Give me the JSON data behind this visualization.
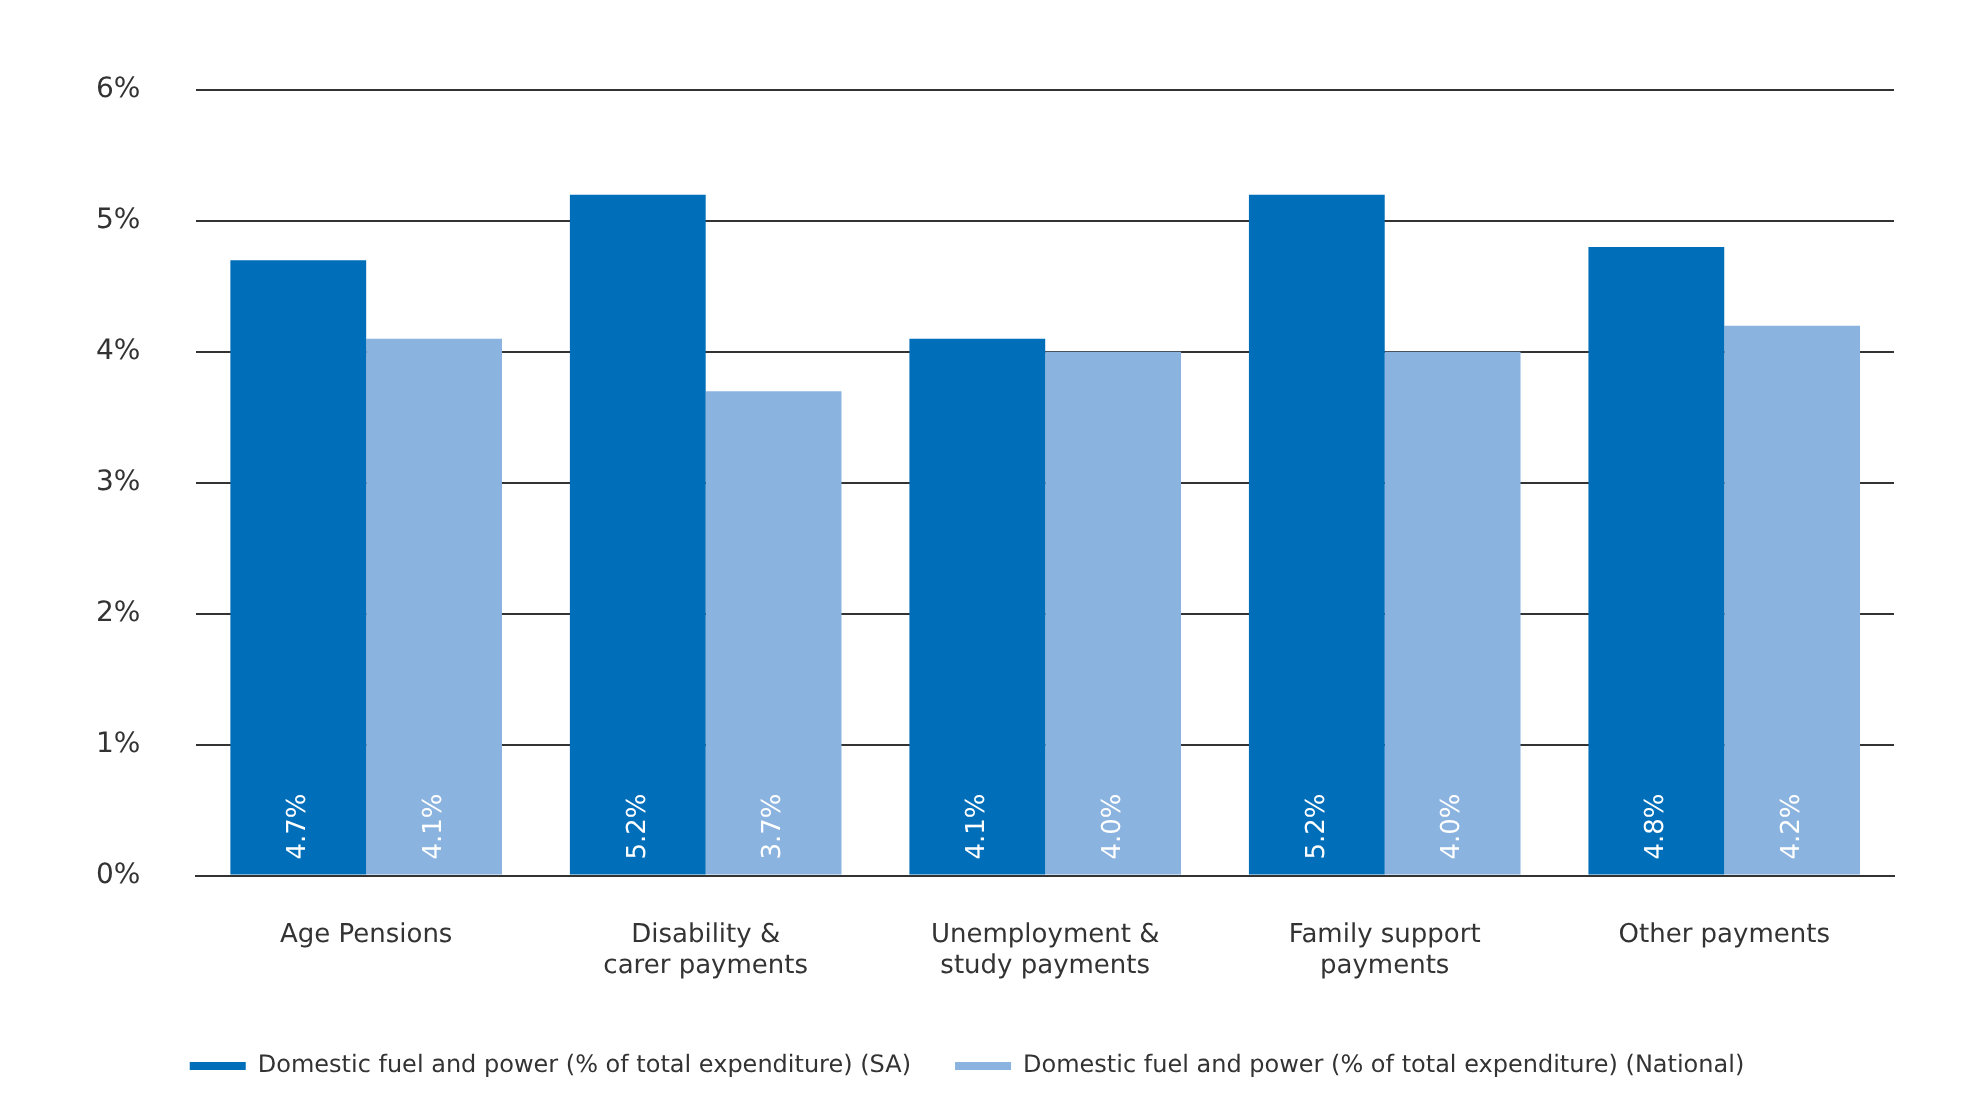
{
  "chart_data": {
    "type": "bar",
    "categories": [
      "Age Pensions",
      "Disability &\ncarer payments",
      "Unemployment &\nstudy payments",
      "Family support\npayments",
      "Other payments"
    ],
    "series": [
      {
        "name": "Domestic fuel and power (% of total expenditure) (SA)",
        "color": "#006eb9",
        "values": [
          4.7,
          5.2,
          4.1,
          5.2,
          4.8
        ],
        "value_labels": [
          "4.7%",
          "5.2%",
          "4.1%",
          "5.2%",
          "4.8%"
        ]
      },
      {
        "name": "Domestic fuel and power (% of total expenditure) (National)",
        "color": "#8bb3df",
        "values": [
          4.1,
          3.7,
          4.0,
          4.0,
          4.2
        ],
        "value_labels": [
          "4.1%",
          "3.7%",
          "4.0%",
          "4.0%",
          "4.2%"
        ]
      }
    ],
    "ylim": [
      0,
      6
    ],
    "yticks": [
      {
        "value": 0,
        "label": "0%"
      },
      {
        "value": 1,
        "label": "1%"
      },
      {
        "value": 2,
        "label": "2%"
      },
      {
        "value": 3,
        "label": "3%"
      },
      {
        "value": 4,
        "label": "4%"
      },
      {
        "value": 5,
        "label": "5%"
      },
      {
        "value": 6,
        "label": "6%"
      }
    ],
    "grid": "y",
    "legend": "bottom"
  }
}
